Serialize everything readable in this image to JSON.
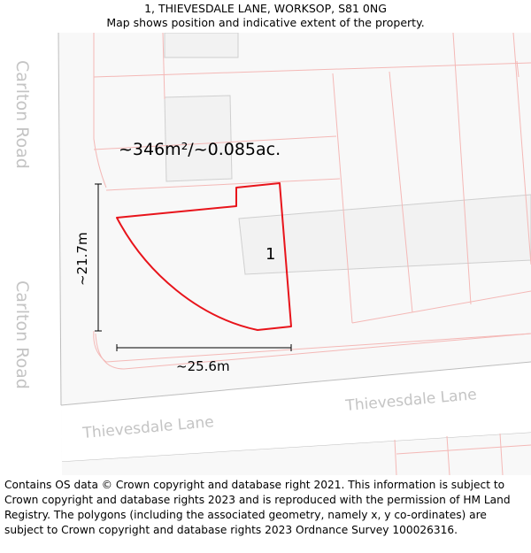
{
  "header": {
    "title": "1, THIEVESDALE LANE, WORKSOP, S81 0NG",
    "subtitle": "Map shows position and indicative extent of the property."
  },
  "map": {
    "roads": {
      "carlton_road_upper": "Carlton Road",
      "carlton_road_lower": "Carlton Road",
      "thievesdale_lane_left": "Thievesdale Lane",
      "thievesdale_lane_right": "Thievesdale Lane"
    },
    "area_label": "~346m²/~0.085ac.",
    "plot_number": "1",
    "width_dimension": "~25.6m",
    "height_dimension": "~21.7m",
    "colors": {
      "boundary": "#e8141b",
      "parcel_line": "#f4b8b6",
      "building_fill": "#f2f2f2",
      "road_text": "#c4c4c4",
      "road_fill": "#ffffff",
      "ground": "#f8f8f8"
    }
  },
  "footer": {
    "attribution": "Contains OS data © Crown copyright and database right 2021. This information is subject to Crown copyright and database rights 2023 and is reproduced with the permission of HM Land Registry. The polygons (including the associated geometry, namely x, y co-ordinates) are subject to Crown copyright and database rights 2023 Ordnance Survey 100026316."
  }
}
